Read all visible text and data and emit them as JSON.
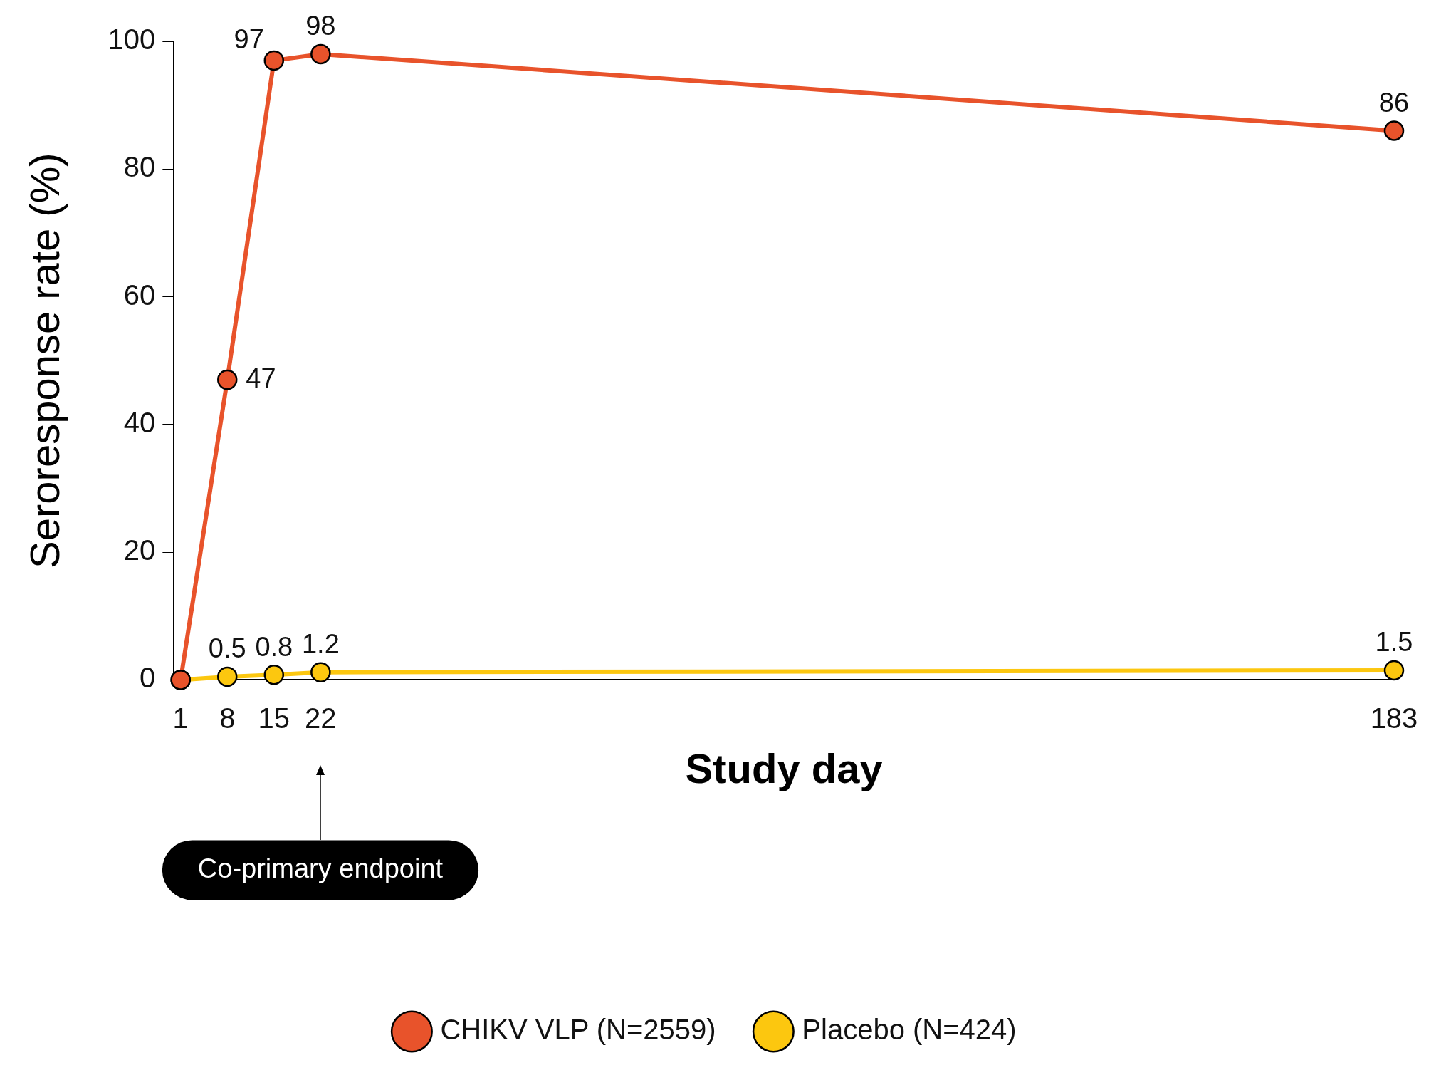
{
  "chart_data": {
    "type": "line",
    "xlabel": "Study day",
    "ylabel": "Seroresponse rate (%)",
    "x": [
      1,
      8,
      15,
      22,
      183
    ],
    "series": [
      {
        "name": "CHIKV VLP (N=2559)",
        "color": "#e8532b",
        "values": [
          0,
          47,
          97,
          98,
          86
        ],
        "value_labels": [
          null,
          "47",
          "97",
          "98",
          "86"
        ]
      },
      {
        "name": "Placebo (N=424)",
        "color": "#fcc70f",
        "values": [
          0,
          0.5,
          0.8,
          1.2,
          1.5
        ],
        "value_labels": [
          null,
          "0.5",
          "0.8",
          "1.2",
          "1.5"
        ]
      }
    ],
    "xlim": [
      0,
      183
    ],
    "xticks": [
      1,
      8,
      15,
      22,
      183
    ],
    "ylim": [
      0,
      100
    ],
    "yticks": [
      0,
      20,
      40,
      60,
      80,
      100
    ],
    "grid": false,
    "legend": "bottom",
    "marker": "circle",
    "line_style": "solid",
    "annotations": [
      "Co-primary endpoint"
    ]
  }
}
